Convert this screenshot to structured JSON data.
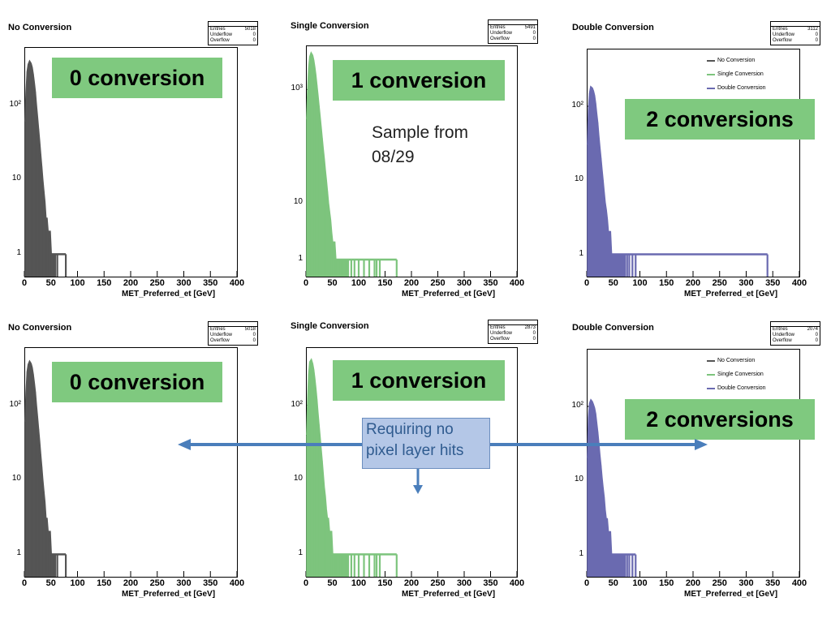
{
  "panels": [
    {
      "title": "No Conversion",
      "color": "#555555",
      "entries": "5018",
      "underflow": "0",
      "overflow": "0",
      "yticks": [
        "1",
        "10",
        "10²"
      ],
      "legend": false,
      "xlabel": "MET_Preferred_et [GeV]"
    },
    {
      "title": "Single Conversion",
      "color": "#7dc47d",
      "entries": "5491",
      "underflow": "0",
      "overflow": "0",
      "yticks": [
        "1",
        "10",
        "10³"
      ],
      "legend": false,
      "xlabel": "MET_Preferred_et [GeV]"
    },
    {
      "title": "Double Conversion",
      "color": "#6a6ab0",
      "entries": "3112",
      "underflow": "0",
      "overflow": "0",
      "yticks": [
        "1",
        "10",
        "10²"
      ],
      "legend": true,
      "xlabel": "MET_Preferred_et [GeV]"
    },
    {
      "title": "No Conversion",
      "color": "#555555",
      "entries": "5018",
      "underflow": "0",
      "overflow": "0",
      "yticks": [
        "1",
        "10",
        "10²"
      ],
      "legend": false,
      "xlabel": "MET_Preferred_et [GeV]"
    },
    {
      "title": "Single Conversion",
      "color": "#7dc47d",
      "entries": "2873",
      "underflow": "0",
      "overflow": "0",
      "yticks": [
        "1",
        "10",
        "10²"
      ],
      "legend": false,
      "xlabel": "MET_Preferred_et [GeV]"
    },
    {
      "title": "Double Conversion",
      "color": "#6a6ab0",
      "entries": "2074",
      "underflow": "0",
      "overflow": "0",
      "yticks": [
        "1",
        "10",
        "10²"
      ],
      "legend": true,
      "xlabel": "MET_Preferred_et [GeV]"
    }
  ],
  "stats_labels": {
    "entries": "Entries",
    "underflow": "Underflow",
    "overflow": "Overflow"
  },
  "legend_items": [
    {
      "label": "No Conversion",
      "color": "#555555"
    },
    {
      "label": "Single Conversion",
      "color": "#7dc47d"
    },
    {
      "label": "Double Conversion",
      "color": "#6a6ab0"
    }
  ],
  "annotations": {
    "conv0": "0 conversion",
    "conv1": "1 conversion",
    "conv2": "2 conversions",
    "sample_line1": "Sample from",
    "sample_line2": "08/29",
    "requiring_line1": "Requiring no",
    "requiring_line2": "pixel layer hits"
  },
  "colors": {
    "label_box": "#7fc97f",
    "note_box": "#b4c7e7",
    "arrow": "#4a7ebb"
  },
  "chart_data": [
    {
      "type": "bar",
      "title": "No Conversion",
      "xlabel": "MET_Preferred_et [GeV]",
      "ylabel": "",
      "xlim": [
        0,
        400
      ],
      "ylog": true,
      "ylim": [
        0.5,
        600
      ],
      "x": [
        2,
        4,
        6,
        8,
        10,
        12,
        14,
        16,
        18,
        20,
        22,
        24,
        26,
        28,
        30,
        32,
        34,
        36,
        38,
        40,
        42,
        44,
        46,
        48,
        50,
        52,
        54,
        56,
        58,
        60,
        62,
        64,
        66,
        68,
        70,
        72,
        74,
        76,
        78
      ],
      "values": [
        60,
        150,
        280,
        350,
        380,
        360,
        320,
        260,
        200,
        150,
        100,
        70,
        48,
        33,
        22,
        15,
        10,
        7,
        5,
        3,
        3,
        2,
        2,
        2,
        1,
        1,
        1,
        1,
        1,
        0,
        1,
        0,
        0,
        0,
        0,
        0,
        0,
        0,
        1
      ]
    },
    {
      "type": "bar",
      "title": "Single Conversion",
      "xlabel": "MET_Preferred_et [GeV]",
      "ylabel": "",
      "xlim": [
        0,
        400
      ],
      "ylog": true,
      "ylim": [
        0.5,
        6000
      ],
      "x": [
        2,
        4,
        6,
        8,
        10,
        12,
        14,
        16,
        18,
        20,
        22,
        24,
        26,
        28,
        30,
        32,
        34,
        36,
        38,
        40,
        42,
        44,
        46,
        48,
        50,
        52,
        54,
        56,
        58,
        60,
        62,
        64,
        66,
        68,
        70,
        72,
        74,
        76,
        78,
        80,
        86,
        92,
        100,
        110,
        120,
        130,
        134,
        140,
        172
      ],
      "values": [
        300,
        1000,
        2400,
        3800,
        4300,
        4000,
        3300,
        2500,
        1800,
        1200,
        800,
        520,
        340,
        220,
        140,
        90,
        60,
        38,
        25,
        16,
        10,
        7,
        5,
        3,
        2,
        2,
        2,
        1,
        1,
        1,
        1,
        1,
        1,
        1,
        1,
        1,
        1,
        1,
        1,
        1,
        1,
        1,
        1,
        1,
        1,
        1,
        1,
        1,
        1
      ]
    },
    {
      "type": "bar",
      "title": "Double Conversion",
      "xlabel": "MET_Preferred_et [GeV]",
      "ylabel": "",
      "xlim": [
        0,
        400
      ],
      "ylog": true,
      "ylim": [
        0.5,
        600
      ],
      "x": [
        2,
        4,
        6,
        8,
        10,
        12,
        14,
        16,
        18,
        20,
        22,
        24,
        26,
        28,
        30,
        32,
        34,
        36,
        38,
        40,
        42,
        44,
        46,
        48,
        50,
        52,
        54,
        56,
        58,
        60,
        62,
        64,
        66,
        68,
        70,
        72,
        76,
        80,
        86,
        92,
        340
      ],
      "values": [
        30,
        90,
        150,
        180,
        175,
        160,
        140,
        110,
        80,
        60,
        40,
        28,
        20,
        14,
        10,
        7,
        5,
        4,
        3,
        2,
        2,
        2,
        1,
        1,
        1,
        1,
        1,
        1,
        1,
        1,
        1,
        1,
        1,
        1,
        1,
        1,
        1,
        1,
        1,
        1,
        1
      ]
    },
    {
      "type": "bar",
      "title": "No Conversion",
      "xlabel": "MET_Preferred_et [GeV]",
      "ylabel": "",
      "xlim": [
        0,
        400
      ],
      "ylog": true,
      "ylim": [
        0.5,
        600
      ],
      "x": [
        2,
        4,
        6,
        8,
        10,
        12,
        14,
        16,
        18,
        20,
        22,
        24,
        26,
        28,
        30,
        32,
        34,
        36,
        38,
        40,
        42,
        44,
        46,
        48,
        50,
        52,
        54,
        56,
        58,
        60,
        62,
        64,
        66,
        68,
        70,
        72,
        74,
        76,
        78
      ],
      "values": [
        60,
        150,
        280,
        350,
        380,
        360,
        320,
        260,
        200,
        150,
        100,
        70,
        48,
        33,
        22,
        15,
        10,
        7,
        5,
        3,
        3,
        2,
        2,
        2,
        1,
        1,
        1,
        1,
        1,
        0,
        1,
        0,
        0,
        0,
        0,
        0,
        0,
        0,
        1
      ]
    },
    {
      "type": "bar",
      "title": "Single Conversion",
      "xlabel": "MET_Preferred_et [GeV]",
      "ylabel": "",
      "xlim": [
        0,
        400
      ],
      "ylog": true,
      "ylim": [
        0.5,
        600
      ],
      "x": [
        2,
        4,
        6,
        8,
        10,
        12,
        14,
        16,
        18,
        20,
        22,
        24,
        26,
        28,
        30,
        32,
        34,
        36,
        38,
        40,
        42,
        44,
        46,
        48,
        50,
        52,
        54,
        56,
        58,
        60,
        62,
        64,
        66,
        68,
        70,
        72,
        74,
        76,
        78,
        80,
        86,
        92,
        100,
        110,
        120,
        130,
        134,
        140,
        172
      ],
      "values": [
        40,
        120,
        260,
        380,
        400,
        360,
        300,
        230,
        170,
        120,
        80,
        55,
        38,
        26,
        18,
        12,
        8,
        6,
        4,
        3,
        3,
        2,
        2,
        2,
        1,
        1,
        1,
        1,
        1,
        1,
        1,
        1,
        1,
        1,
        1,
        1,
        1,
        1,
        1,
        1,
        1,
        1,
        1,
        1,
        1,
        1,
        1,
        1,
        1
      ]
    },
    {
      "type": "bar",
      "title": "Double Conversion",
      "xlabel": "MET_Preferred_et [GeV]",
      "ylabel": "",
      "xlim": [
        0,
        400
      ],
      "ylog": true,
      "ylim": [
        0.5,
        600
      ],
      "x": [
        2,
        4,
        6,
        8,
        10,
        12,
        14,
        16,
        18,
        20,
        22,
        24,
        26,
        28,
        30,
        32,
        34,
        36,
        38,
        40,
        42,
        44,
        46,
        48,
        50,
        52,
        54,
        56,
        58,
        60,
        62,
        64,
        66,
        68,
        70,
        72,
        76,
        80,
        86,
        92
      ],
      "values": [
        20,
        70,
        110,
        120,
        115,
        105,
        95,
        80,
        60,
        45,
        32,
        22,
        16,
        11,
        8,
        6,
        4,
        3,
        3,
        2,
        2,
        2,
        1,
        1,
        1,
        1,
        1,
        1,
        1,
        1,
        1,
        1,
        1,
        1,
        1,
        1,
        1,
        1,
        1,
        1
      ]
    }
  ]
}
